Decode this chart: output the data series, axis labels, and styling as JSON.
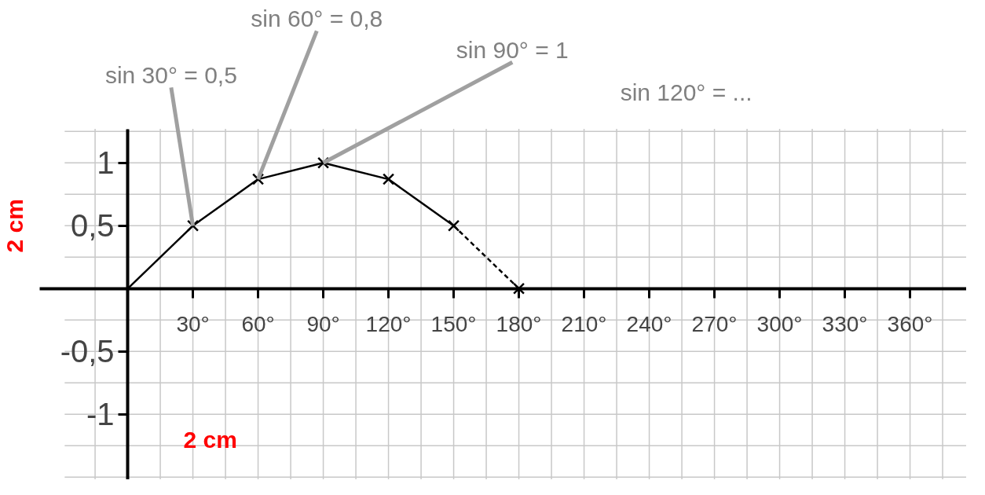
{
  "chart_data": {
    "type": "line",
    "series": [
      {
        "color": "#000000",
        "x": [
          0,
          30,
          60,
          90,
          120,
          150
        ],
        "values": [
          0,
          0.5,
          0.87,
          1,
          0.87,
          0.5
        ],
        "line_style": "solid"
      },
      {
        "color": "#000000",
        "x": [
          150,
          180
        ],
        "values": [
          0.5,
          0
        ],
        "line_style": "dashed"
      }
    ],
    "marker": "cross",
    "xlim": [
      -29,
      386
    ],
    "ylim": [
      -1.52,
      1.27
    ],
    "xticks": [
      {
        "value": 30,
        "label": "30°"
      },
      {
        "value": 60,
        "label": "60°"
      },
      {
        "value": 90,
        "label": "90°"
      },
      {
        "value": 120,
        "label": "120°"
      },
      {
        "value": 150,
        "label": "150°"
      },
      {
        "value": 180,
        "label": "180°"
      },
      {
        "value": 210,
        "label": "210°"
      },
      {
        "value": 240,
        "label": "240°"
      },
      {
        "value": 270,
        "label": "270°"
      },
      {
        "value": 300,
        "label": "300°"
      },
      {
        "value": 330,
        "label": "330°"
      },
      {
        "value": 360,
        "label": "360°"
      }
    ],
    "yticks": [
      {
        "value": -1,
        "label": "-1"
      },
      {
        "value": -0.5,
        "label": "-0,5"
      },
      {
        "value": 0.5,
        "label": "0,5"
      },
      1
    ],
    "grid": true,
    "annotations": [
      {
        "text": "sin 30° = 0,5",
        "x": 30,
        "y": 0.5
      },
      {
        "text": "sin 60° = 0,8",
        "x": 60,
        "y": 0.87
      },
      {
        "text": "sin 90° = 1",
        "x": 90,
        "y": 1
      },
      "sin 120° = ...",
      "2 cm",
      "2 cm"
    ]
  }
}
